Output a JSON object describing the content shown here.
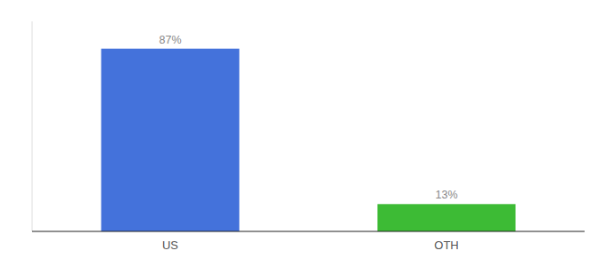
{
  "chart_data": {
    "type": "bar",
    "categories": [
      "US",
      "OTH"
    ],
    "values": [
      87,
      13
    ],
    "value_labels": [
      "87%",
      "13%"
    ],
    "colors": [
      "#4472db",
      "#3dbb35"
    ],
    "data_labels": true,
    "ylim": [
      0,
      100
    ],
    "tick_labels": "x"
  }
}
